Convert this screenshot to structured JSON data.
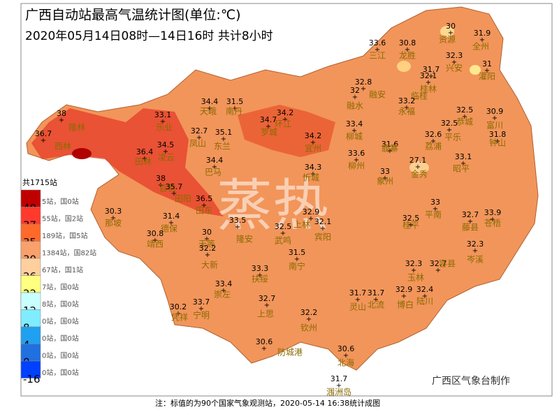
{
  "header": {
    "title": "广西自动站最高气温统计图(单位:℃)",
    "subtitle": "2020年05月14日08时—14日16时  共计8小时"
  },
  "watermark": "蒸热",
  "credit": "广西区气象台制作",
  "footnote": "注：标值的为90个国家气象观测站，2020-05-14 16:38统计成图",
  "legend": {
    "total": "共1715站",
    "items": [
      {
        "label": "5站，国0站",
        "color": "#c00000"
      },
      {
        "label": "55站，国2站",
        "color": "#ff3a2c"
      },
      {
        "label": "189站，国5站",
        "color": "#ff6a2a"
      },
      {
        "label": "1384站，国82站",
        "color": "#f9a06c"
      },
      {
        "label": "67站，国1站",
        "color": "#ffcf9e"
      },
      {
        "label": "7站，国0站",
        "color": "#ffff80"
      },
      {
        "label": "8站，国0站",
        "color": "#c8ffff"
      },
      {
        "label": "0站，国0站",
        "color": "#80ecff"
      },
      {
        "label": "0站，国0站",
        "color": "#20a0f0"
      },
      {
        "label": "0站，国0站",
        "color": "#2070e0"
      },
      {
        "label": "0站，国0站",
        "color": "#0040ff"
      }
    ],
    "thresholds": [
      "40",
      "37",
      "35",
      "30",
      "26",
      "22",
      "12",
      "8",
      "4",
      "0",
      "-16"
    ]
  },
  "stations": [
    {
      "name": "隆林",
      "value": 38
    },
    {
      "name": "西林",
      "value": 36.7
    },
    {
      "name": "乐业",
      "value": 33.1
    },
    {
      "name": "天峨",
      "value": 34.4
    },
    {
      "name": "南丹",
      "value": 31.5
    },
    {
      "name": "环江",
      "value": 34.2
    },
    {
      "name": "凤山",
      "value": 32.7
    },
    {
      "name": "东兰",
      "value": 35.1
    },
    {
      "name": "田林",
      "value": 36.4
    },
    {
      "name": "凌云",
      "value": 34.5
    },
    {
      "name": "巴马",
      "value": 34.4
    },
    {
      "name": "百色",
      "value": 38
    },
    {
      "name": "田阳",
      "value": 35.7
    },
    {
      "name": "田东",
      "value": 36.5
    },
    {
      "name": "那坡",
      "value": 30.3
    },
    {
      "name": "德保",
      "value": 31.4
    },
    {
      "name": "靖西",
      "value": 30.8
    },
    {
      "name": "天等",
      "value": 30
    },
    {
      "name": "大新",
      "value": 32.2
    },
    {
      "name": "隆安",
      "value": 33.5
    },
    {
      "name": "武鸣",
      "value": 32.5
    },
    {
      "name": "宾阳",
      "value": 32.1
    },
    {
      "name": "上林",
      "value": 32.9
    },
    {
      "name": "忻城",
      "value": 34.3
    },
    {
      "name": "宜州",
      "value": 34.2
    },
    {
      "name": "罗城",
      "value": 34.7
    },
    {
      "name": "融水",
      "value": 32
    },
    {
      "name": "融安",
      "value": 32.8
    },
    {
      "name": "三江",
      "value": 33.6
    },
    {
      "name": "龙胜",
      "value": 30.8
    },
    {
      "name": "资源",
      "value": 30
    },
    {
      "name": "全州",
      "value": 31.9
    },
    {
      "name": "兴安",
      "value": 32.3
    },
    {
      "name": "灌阳",
      "value": 31
    },
    {
      "name": "临桂",
      "value": 31.7
    },
    {
      "name": "桂林",
      "value": 32.1
    },
    {
      "name": "永福",
      "value": 33.2
    },
    {
      "name": "柳城",
      "value": 33.4
    },
    {
      "name": "柳州",
      "value": 33.6
    },
    {
      "name": "鹿寨",
      "value": 31.6
    },
    {
      "name": "象州",
      "value": 33
    },
    {
      "name": "平南",
      "value": 33
    },
    {
      "name": "桂平",
      "value": 32.5
    },
    {
      "name": "藤县",
      "value": 32.7
    },
    {
      "name": "苍梧",
      "value": 33.9
    },
    {
      "name": "岑溪",
      "value": 32.3
    },
    {
      "name": "南宁",
      "value": 31.5
    },
    {
      "name": "扶绥",
      "value": 33.3
    },
    {
      "name": "崇左",
      "value": 33.4
    },
    {
      "name": "宁明",
      "value": 33.7
    },
    {
      "name": "凭祥",
      "value": 30.2
    },
    {
      "name": "上思",
      "value": 32.7
    },
    {
      "name": "灵山",
      "value": 31.7
    },
    {
      "name": "钦州",
      "value": 32.2
    },
    {
      "name": "防城港",
      "value": 30.6
    },
    {
      "name": "北海",
      "value": 30.6
    },
    {
      "name": "涠洲岛",
      "value": 31.7
    },
    {
      "name": "玉林",
      "value": 32.3
    },
    {
      "name": "容县",
      "value": 32.7
    },
    {
      "name": "北流",
      "value": 31.7
    },
    {
      "name": "博白",
      "value": 32.9
    },
    {
      "name": "陆川",
      "value": 32.4
    },
    {
      "name": "钟山",
      "value": 31.8
    },
    {
      "name": "富川",
      "value": 30.9
    },
    {
      "name": "昭平",
      "value": 33.1
    },
    {
      "name": "金秀",
      "value": 27.1
    },
    {
      "name": "荔浦",
      "value": 32.6
    },
    {
      "name": "平乐",
      "value": 32.5
    },
    {
      "name": "恭城",
      "value": 32.5
    }
  ]
}
